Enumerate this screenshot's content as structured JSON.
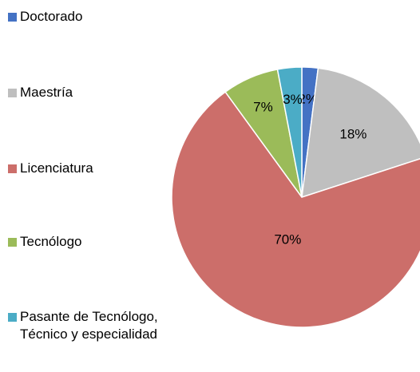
{
  "chart_data": {
    "type": "pie",
    "categories": [
      "Doctorado",
      "Maestría",
      "Licenciatura",
      "Tecnólogo",
      "Pasante de Tecnólogo, Técnico y especialidad"
    ],
    "values": [
      2,
      18,
      70,
      7,
      3
    ],
    "value_labels": [
      "2%",
      "18%",
      "70%",
      "7%",
      "3%"
    ],
    "colors": [
      "#4472c4",
      "#bfbfbf",
      "#cc6e6a",
      "#9bbb59",
      "#4bacc6"
    ],
    "legend": "left"
  }
}
